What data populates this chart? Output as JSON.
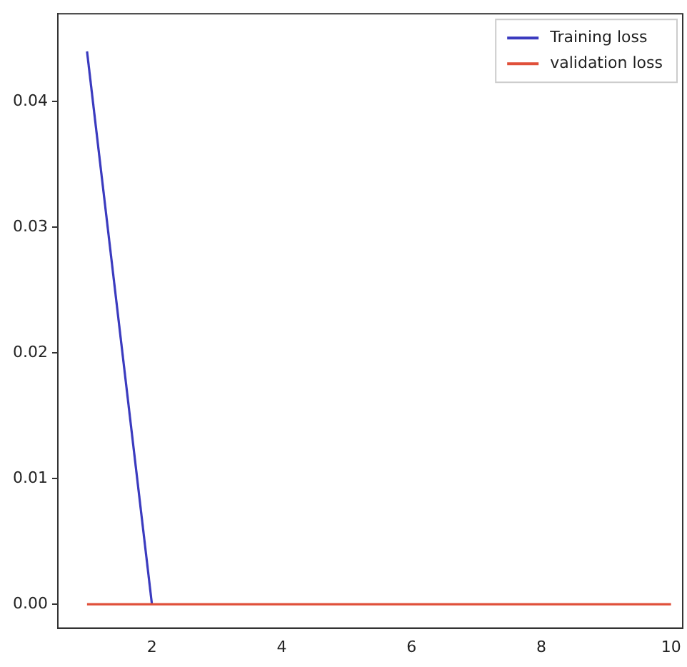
{
  "chart_data": {
    "type": "line",
    "x": [
      1,
      2,
      3,
      4,
      5,
      6,
      7,
      8,
      9,
      10
    ],
    "series": [
      {
        "name": "Training loss",
        "color": "#3b3bbf",
        "values": [
          0.044,
          0,
          null,
          null,
          null,
          null,
          null,
          null,
          null,
          null
        ]
      },
      {
        "name": "validation loss",
        "color": "#e0503a",
        "values": [
          0,
          0,
          0,
          0,
          0,
          0,
          0,
          0,
          0,
          0
        ]
      }
    ],
    "xlim": [
      0.55,
      10.18
    ],
    "xticks": [
      2,
      4,
      6,
      8,
      10
    ],
    "ylim": [
      -0.0019,
      0.047
    ],
    "yticks": [
      {
        "value": 0,
        "label": "0.00"
      },
      {
        "value": 0.01,
        "label": "0.01"
      },
      {
        "value": 0.02,
        "label": "0.02"
      },
      {
        "value": 0.03,
        "label": "0.03"
      },
      {
        "value": 0.04,
        "label": "0.04"
      }
    ],
    "grid": false,
    "legend": "top right",
    "marker": "none",
    "line_style": "solid"
  }
}
